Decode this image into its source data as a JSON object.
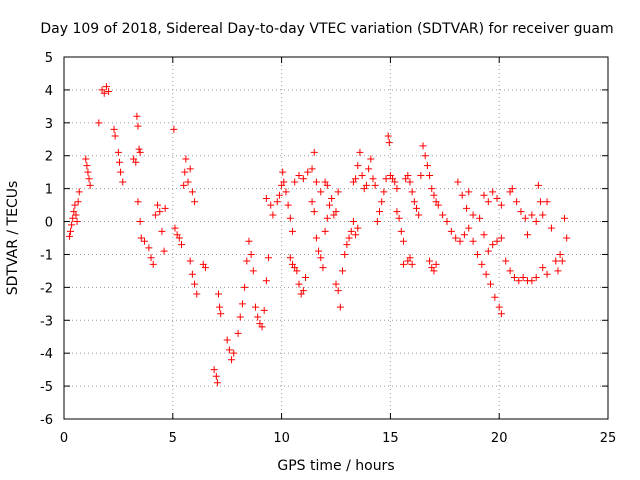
{
  "chart_data": {
    "type": "scatter",
    "title": "Day 109 of 2018, Sidereal Day-to-day VTEC variation (SDTVAR) for receiver guam",
    "xlabel": "GPS time / hours",
    "ylabel": "SDTVAR / TECUs",
    "xlim": [
      0,
      25
    ],
    "ylim": [
      -6,
      5
    ],
    "xticks": [
      "0",
      "5",
      "10",
      "15",
      "20",
      "25"
    ],
    "yticks": [
      "-6",
      "-5",
      "-4",
      "-3",
      "-2",
      "-1",
      "0",
      "1",
      "2",
      "3",
      "4",
      "5"
    ],
    "grid": true,
    "marker": "+",
    "series": [
      {
        "name": "SDTVAR",
        "color": "#ff0000",
        "points": [
          [
            0.25,
            -0.45
          ],
          [
            0.3,
            -0.3
          ],
          [
            0.35,
            -0.1
          ],
          [
            0.4,
            0.1
          ],
          [
            0.45,
            0.3
          ],
          [
            0.5,
            0.5
          ],
          [
            0.55,
            0.2
          ],
          [
            0.6,
            0.0
          ],
          [
            0.65,
            0.6
          ],
          [
            0.7,
            0.9
          ],
          [
            1.0,
            1.9
          ],
          [
            1.05,
            1.7
          ],
          [
            1.1,
            1.5
          ],
          [
            1.15,
            1.3
          ],
          [
            1.2,
            1.1
          ],
          [
            1.6,
            3.0
          ],
          [
            1.75,
            4.0
          ],
          [
            1.85,
            3.9
          ],
          [
            1.95,
            4.1
          ],
          [
            2.05,
            3.95
          ],
          [
            2.3,
            2.8
          ],
          [
            2.35,
            2.6
          ],
          [
            2.5,
            2.1
          ],
          [
            2.55,
            1.8
          ],
          [
            2.6,
            1.5
          ],
          [
            2.7,
            1.2
          ],
          [
            3.2,
            1.9
          ],
          [
            3.3,
            1.8
          ],
          [
            3.35,
            3.2
          ],
          [
            3.4,
            2.9
          ],
          [
            3.45,
            2.2
          ],
          [
            3.5,
            2.1
          ],
          [
            3.4,
            0.6
          ],
          [
            3.5,
            0.0
          ],
          [
            3.55,
            -0.5
          ],
          [
            3.7,
            -0.6
          ],
          [
            3.9,
            -0.8
          ],
          [
            4.0,
            -1.1
          ],
          [
            4.1,
            -1.3
          ],
          [
            4.2,
            0.2
          ],
          [
            4.3,
            0.5
          ],
          [
            4.4,
            0.3
          ],
          [
            4.5,
            -0.3
          ],
          [
            4.6,
            -0.9
          ],
          [
            4.65,
            0.4
          ],
          [
            5.05,
            2.8
          ],
          [
            5.1,
            -0.2
          ],
          [
            5.2,
            -0.4
          ],
          [
            5.3,
            -0.5
          ],
          [
            5.4,
            -0.7
          ],
          [
            5.5,
            1.1
          ],
          [
            5.55,
            1.5
          ],
          [
            5.6,
            1.9
          ],
          [
            5.7,
            1.2
          ],
          [
            5.8,
            1.6
          ],
          [
            5.9,
            0.9
          ],
          [
            6.0,
            0.6
          ],
          [
            5.8,
            -1.2
          ],
          [
            5.9,
            -1.6
          ],
          [
            6.0,
            -1.9
          ],
          [
            6.1,
            -2.2
          ],
          [
            6.4,
            -1.3
          ],
          [
            6.5,
            -1.4
          ],
          [
            6.9,
            -4.5
          ],
          [
            7.0,
            -4.7
          ],
          [
            7.05,
            -4.9
          ],
          [
            7.1,
            -2.2
          ],
          [
            7.15,
            -2.6
          ],
          [
            7.2,
            -2.8
          ],
          [
            7.5,
            -3.6
          ],
          [
            7.6,
            -3.9
          ],
          [
            7.7,
            -4.2
          ],
          [
            7.8,
            -4.0
          ],
          [
            8.0,
            -3.4
          ],
          [
            8.1,
            -2.9
          ],
          [
            8.2,
            -2.5
          ],
          [
            8.3,
            -2.0
          ],
          [
            8.4,
            -1.2
          ],
          [
            8.5,
            -0.6
          ],
          [
            8.6,
            -1.0
          ],
          [
            8.7,
            -1.5
          ],
          [
            8.8,
            -2.6
          ],
          [
            8.9,
            -2.9
          ],
          [
            9.0,
            -3.1
          ],
          [
            9.1,
            -3.2
          ],
          [
            9.2,
            -2.7
          ],
          [
            9.3,
            -1.8
          ],
          [
            9.4,
            -1.1
          ],
          [
            9.3,
            0.7
          ],
          [
            9.5,
            0.5
          ],
          [
            9.6,
            0.2
          ],
          [
            9.8,
            0.6
          ],
          [
            9.9,
            0.8
          ],
          [
            10.0,
            1.1
          ],
          [
            10.05,
            1.5
          ],
          [
            10.1,
            1.2
          ],
          [
            10.2,
            0.9
          ],
          [
            10.3,
            0.5
          ],
          [
            10.4,
            0.1
          ],
          [
            10.5,
            -0.3
          ],
          [
            10.4,
            -1.1
          ],
          [
            10.5,
            -1.3
          ],
          [
            10.6,
            -1.4
          ],
          [
            10.7,
            -1.5
          ],
          [
            10.6,
            1.2
          ],
          [
            10.8,
            1.4
          ],
          [
            11.0,
            1.3
          ],
          [
            11.2,
            1.5
          ],
          [
            11.4,
            1.6
          ],
          [
            11.5,
            2.1
          ],
          [
            10.8,
            -1.9
          ],
          [
            10.9,
            -2.2
          ],
          [
            11.0,
            -2.1
          ],
          [
            11.1,
            -1.7
          ],
          [
            11.4,
            0.6
          ],
          [
            11.5,
            0.3
          ],
          [
            11.6,
            -0.5
          ],
          [
            11.7,
            -0.9
          ],
          [
            11.8,
            -1.1
          ],
          [
            11.9,
            -1.4
          ],
          [
            11.6,
            1.2
          ],
          [
            11.8,
            0.9
          ],
          [
            12.0,
            1.2
          ],
          [
            12.1,
            1.1
          ],
          [
            12.0,
            -0.3
          ],
          [
            12.1,
            0.1
          ],
          [
            12.2,
            0.5
          ],
          [
            12.3,
            0.7
          ],
          [
            12.4,
            0.2
          ],
          [
            12.5,
            0.3
          ],
          [
            12.6,
            0.9
          ],
          [
            12.5,
            -1.9
          ],
          [
            12.6,
            -2.1
          ],
          [
            12.7,
            -2.6
          ],
          [
            12.8,
            -1.5
          ],
          [
            12.9,
            -1.0
          ],
          [
            13.0,
            -0.7
          ],
          [
            13.1,
            -0.5
          ],
          [
            13.2,
            -0.3
          ],
          [
            13.3,
            0.0
          ],
          [
            13.4,
            -0.4
          ],
          [
            13.5,
            -0.2
          ],
          [
            13.3,
            1.2
          ],
          [
            13.4,
            1.3
          ],
          [
            13.5,
            1.7
          ],
          [
            13.6,
            2.1
          ],
          [
            13.7,
            1.4
          ],
          [
            13.8,
            1.0
          ],
          [
            13.9,
            1.1
          ],
          [
            14.0,
            1.6
          ],
          [
            14.1,
            1.9
          ],
          [
            14.2,
            1.3
          ],
          [
            14.3,
            1.1
          ],
          [
            14.4,
            0.0
          ],
          [
            14.5,
            0.3
          ],
          [
            14.6,
            0.6
          ],
          [
            14.7,
            0.9
          ],
          [
            14.8,
            1.3
          ],
          [
            14.9,
            2.6
          ],
          [
            14.95,
            2.4
          ],
          [
            15.0,
            1.4
          ],
          [
            15.1,
            1.3
          ],
          [
            15.2,
            1.2
          ],
          [
            15.3,
            1.0
          ],
          [
            15.3,
            0.3
          ],
          [
            15.4,
            0.1
          ],
          [
            15.5,
            -0.3
          ],
          [
            15.6,
            -0.6
          ],
          [
            15.7,
            1.3
          ],
          [
            15.8,
            1.4
          ],
          [
            15.9,
            1.2
          ],
          [
            16.0,
            0.9
          ],
          [
            15.6,
            -1.3
          ],
          [
            15.8,
            -1.2
          ],
          [
            15.9,
            -1.1
          ],
          [
            16.0,
            -1.3
          ],
          [
            16.1,
            0.6
          ],
          [
            16.2,
            0.4
          ],
          [
            16.3,
            0.2
          ],
          [
            16.4,
            1.4
          ],
          [
            16.5,
            2.3
          ],
          [
            16.6,
            2.0
          ],
          [
            16.7,
            1.7
          ],
          [
            16.8,
            1.4
          ],
          [
            16.9,
            1.0
          ],
          [
            17.0,
            0.8
          ],
          [
            17.1,
            0.6
          ],
          [
            17.2,
            0.5
          ],
          [
            16.8,
            -1.2
          ],
          [
            16.9,
            -1.4
          ],
          [
            17.0,
            -1.5
          ],
          [
            17.1,
            -1.3
          ],
          [
            17.4,
            0.2
          ],
          [
            17.6,
            0.0
          ],
          [
            17.8,
            -0.3
          ],
          [
            18.0,
            -0.5
          ],
          [
            18.2,
            -0.6
          ],
          [
            18.4,
            -0.4
          ],
          [
            18.6,
            -0.2
          ],
          [
            18.1,
            1.2
          ],
          [
            18.3,
            0.8
          ],
          [
            18.5,
            0.4
          ],
          [
            18.6,
            0.9
          ],
          [
            18.8,
            0.2
          ],
          [
            18.8,
            -0.6
          ],
          [
            19.0,
            -1.0
          ],
          [
            19.2,
            -1.3
          ],
          [
            19.4,
            -1.6
          ],
          [
            19.6,
            -1.9
          ],
          [
            19.8,
            -2.3
          ],
          [
            20.0,
            -2.6
          ],
          [
            20.1,
            -2.8
          ],
          [
            19.1,
            0.1
          ],
          [
            19.3,
            -0.4
          ],
          [
            19.5,
            -0.9
          ],
          [
            19.7,
            -0.7
          ],
          [
            19.9,
            -0.6
          ],
          [
            20.1,
            -0.5
          ],
          [
            19.3,
            0.8
          ],
          [
            19.5,
            0.6
          ],
          [
            19.7,
            0.9
          ],
          [
            19.9,
            0.7
          ],
          [
            20.1,
            0.5
          ],
          [
            20.3,
            -1.2
          ],
          [
            20.5,
            -1.5
          ],
          [
            20.7,
            -1.7
          ],
          [
            20.9,
            -1.8
          ],
          [
            21.1,
            -1.7
          ],
          [
            21.3,
            -1.8
          ],
          [
            21.5,
            -1.8
          ],
          [
            21.7,
            -1.7
          ],
          [
            20.5,
            0.9
          ],
          [
            20.6,
            1.0
          ],
          [
            20.8,
            0.6
          ],
          [
            21.0,
            0.3
          ],
          [
            21.2,
            0.1
          ],
          [
            21.3,
            -0.4
          ],
          [
            21.5,
            0.2
          ],
          [
            21.7,
            0.0
          ],
          [
            21.8,
            1.1
          ],
          [
            21.9,
            0.6
          ],
          [
            22.0,
            -1.4
          ],
          [
            22.2,
            -1.6
          ],
          [
            22.0,
            0.2
          ],
          [
            22.2,
            0.6
          ],
          [
            22.4,
            -0.2
          ],
          [
            22.6,
            -1.2
          ],
          [
            22.7,
            -1.5
          ],
          [
            22.8,
            -1.0
          ],
          [
            22.9,
            -1.2
          ],
          [
            23.0,
            0.1
          ],
          [
            23.1,
            -0.5
          ]
        ]
      }
    ]
  }
}
